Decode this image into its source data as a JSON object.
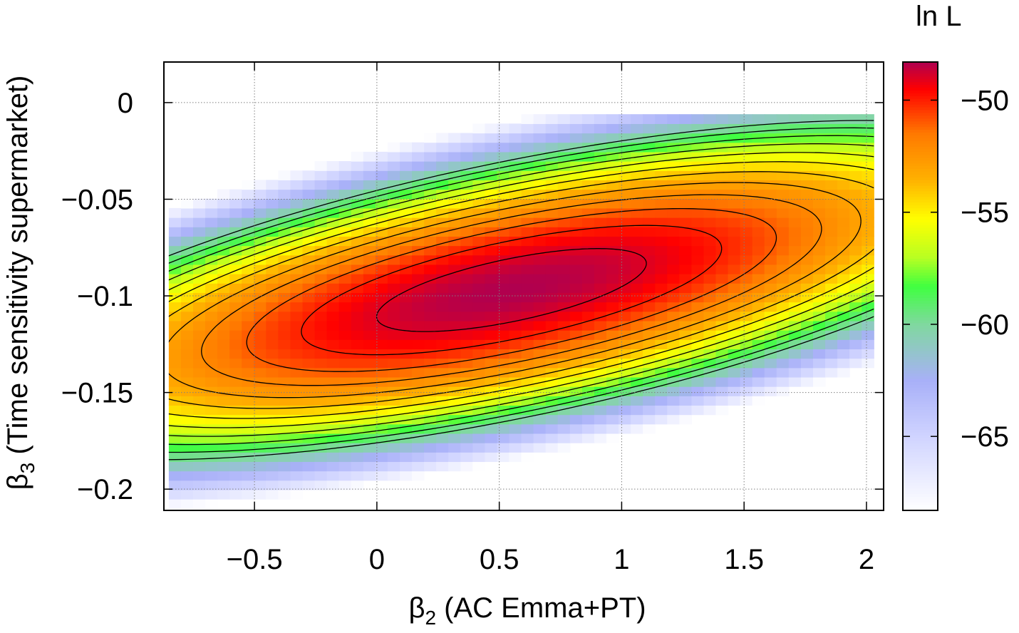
{
  "chart_data": {
    "type": "heatmap",
    "title": "",
    "xlabel": {
      "greek": "β",
      "sub": "2",
      "rest": " (AC Emma+PT)"
    },
    "ylabel": {
      "greek": "β",
      "sub": "3",
      "rest": " (Time sensitivity supermarket)"
    },
    "colorbar_label": "ln L",
    "xlim": [
      -0.87,
      2.07
    ],
    "ylim": [
      -0.211,
      0.021
    ],
    "x_ticks": [
      {
        "value": -0.5,
        "label": "−0.5"
      },
      {
        "value": 0,
        "label": "0"
      },
      {
        "value": 0.5,
        "label": "0.5"
      },
      {
        "value": 1,
        "label": "1"
      },
      {
        "value": 1.5,
        "label": "1.5"
      },
      {
        "value": 2,
        "label": "2"
      }
    ],
    "y_ticks": [
      {
        "value": 0,
        "label": "0"
      },
      {
        "value": -0.05,
        "label": "−0.05"
      },
      {
        "value": -0.1,
        "label": "−0.1"
      },
      {
        "value": -0.15,
        "label": "−0.15"
      },
      {
        "value": -0.2,
        "label": "−0.2"
      }
    ],
    "colorbar_range": [
      -68.3,
      -48.3
    ],
    "colorbar_ticks": [
      {
        "value": -50,
        "label": "−50"
      },
      {
        "value": -55,
        "label": "−55"
      },
      {
        "value": -60,
        "label": "−60"
      },
      {
        "value": -65,
        "label": "−65"
      }
    ],
    "grid": true,
    "surface": {
      "peak": {
        "x": 0.55,
        "y": -0.097,
        "value": -48.3
      },
      "x_range_of_data": [
        -0.85,
        2.03
      ],
      "y_range_of_data": [
        -0.21,
        -0.006
      ],
      "contour_levels": [
        -49,
        -50,
        -51,
        -52,
        -53,
        -54,
        -55,
        -56,
        -57,
        -58,
        -59,
        -60
      ]
    },
    "colormap": [
      {
        "value": -48.3,
        "color": "#b0004f"
      },
      {
        "value": -49.5,
        "color": "#ff0000"
      },
      {
        "value": -51.5,
        "color": "#ff7a00"
      },
      {
        "value": -53.5,
        "color": "#ffb000"
      },
      {
        "value": -55.3,
        "color": "#ffff00"
      },
      {
        "value": -57.0,
        "color": "#b8ff22"
      },
      {
        "value": -58.3,
        "color": "#40ff40"
      },
      {
        "value": -60.0,
        "color": "#80d8a0"
      },
      {
        "value": -62.5,
        "color": "#a8b0f8"
      },
      {
        "value": -65.0,
        "color": "#d0d4ff"
      },
      {
        "value": -68.3,
        "color": "#ffffff"
      }
    ]
  }
}
